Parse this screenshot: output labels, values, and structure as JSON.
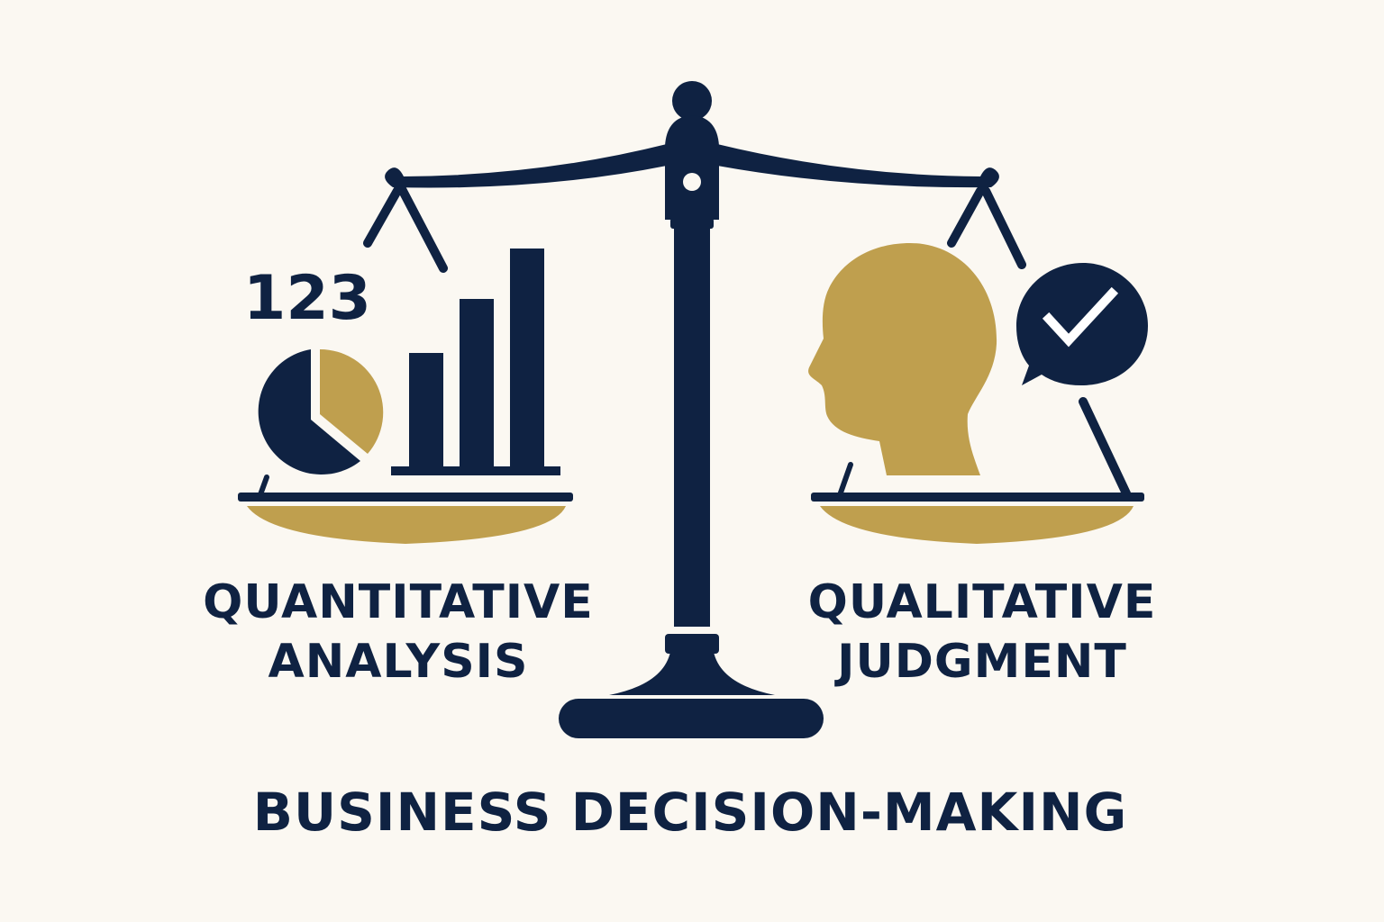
{
  "colors": {
    "background": "#fbf8f2",
    "navy": "#0f2242",
    "gold": "#bf9f4e",
    "white": "#ffffff"
  },
  "left_side": {
    "number_text": "123",
    "label_line1": "QUANTITATIVE",
    "label_line2": "ANALYSIS",
    "icons": [
      "pie-chart-icon",
      "bar-chart-icon"
    ]
  },
  "right_side": {
    "label_line1": "QUALITATIVE",
    "label_line2": "JUDGMENT",
    "icons": [
      "head-silhouette-icon",
      "checkmark-speech-bubble-icon"
    ]
  },
  "footer": {
    "title": "BUSINESS DECISION-MAKING"
  },
  "center": {
    "icon": "balance-scale-icon"
  }
}
